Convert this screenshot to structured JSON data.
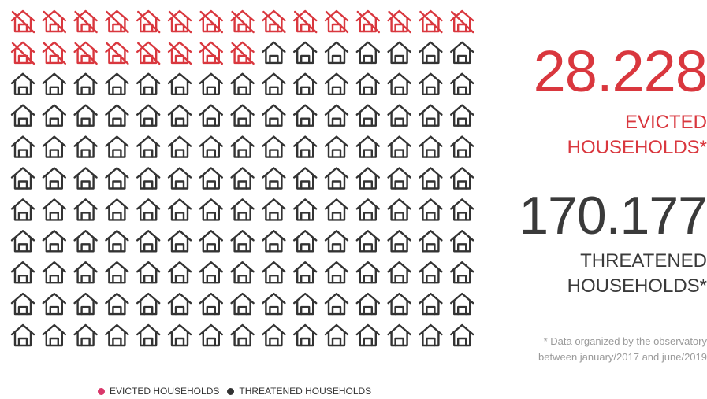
{
  "chart_data": {
    "type": "pictogram",
    "grid_rows": 11,
    "grid_cols": 15,
    "series": [
      {
        "name": "EVICTED HOUSEHOLDS",
        "icons": 23,
        "color": "#d9373e"
      },
      {
        "name": "THREATENED HOUSEHOLDS",
        "icons": 142,
        "color": "#333333"
      }
    ],
    "legend_position": "bottom-left"
  },
  "stats": {
    "evicted_number": "28.228",
    "evicted_label_line1": "EVICTED",
    "evicted_label_line2": "HOUSEHOLDS*",
    "threatened_number": "170.177",
    "threatened_label_line1": "THREATENED",
    "threatened_label_line2": "HOUSEHOLDS*"
  },
  "footnote": {
    "line1": "* Data organized by the observatory",
    "line2": "between january/2017  and june/2019"
  },
  "legend": {
    "evicted": "EVICTED HOUSEHOLDS",
    "threatened": "THREATENED HOUSEHOLDS"
  },
  "colors": {
    "evicted": "#d9373e",
    "threatened": "#333333",
    "legend_evicted_dot": "#d9376a",
    "legend_threatened_dot": "#333333"
  },
  "icons": {
    "evicted": "house-crossed-icon",
    "threatened": "house-icon"
  }
}
